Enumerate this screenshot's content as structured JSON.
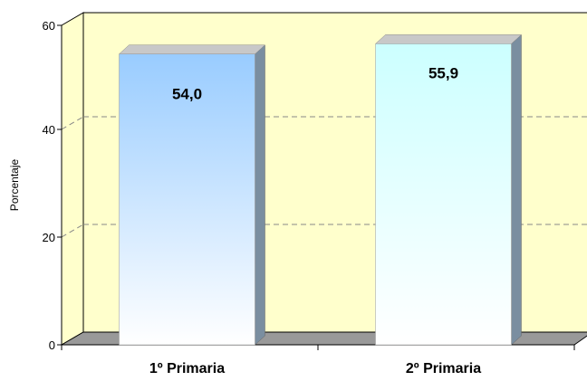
{
  "chart_data": {
    "type": "bar",
    "categories": [
      "1º Primaria",
      "2º Primaria"
    ],
    "values": [
      54.0,
      55.9
    ],
    "data_labels": [
      "54,0",
      "55,9"
    ],
    "ylabel": "Porcentaje",
    "ylim": [
      0,
      60
    ],
    "yticks": [
      0,
      20,
      40,
      60
    ],
    "ytick_labels": [
      "0",
      "20",
      "40",
      "60"
    ],
    "grid": true,
    "legend": "none",
    "style": "3d",
    "colors": {
      "wall": "#ffffcc",
      "floor": "#999999",
      "bar1_top": "#99ccff",
      "bar2_top": "#ccffff",
      "bar_bottom": "#ffffff",
      "bar_side": "#7a8ea0"
    }
  }
}
